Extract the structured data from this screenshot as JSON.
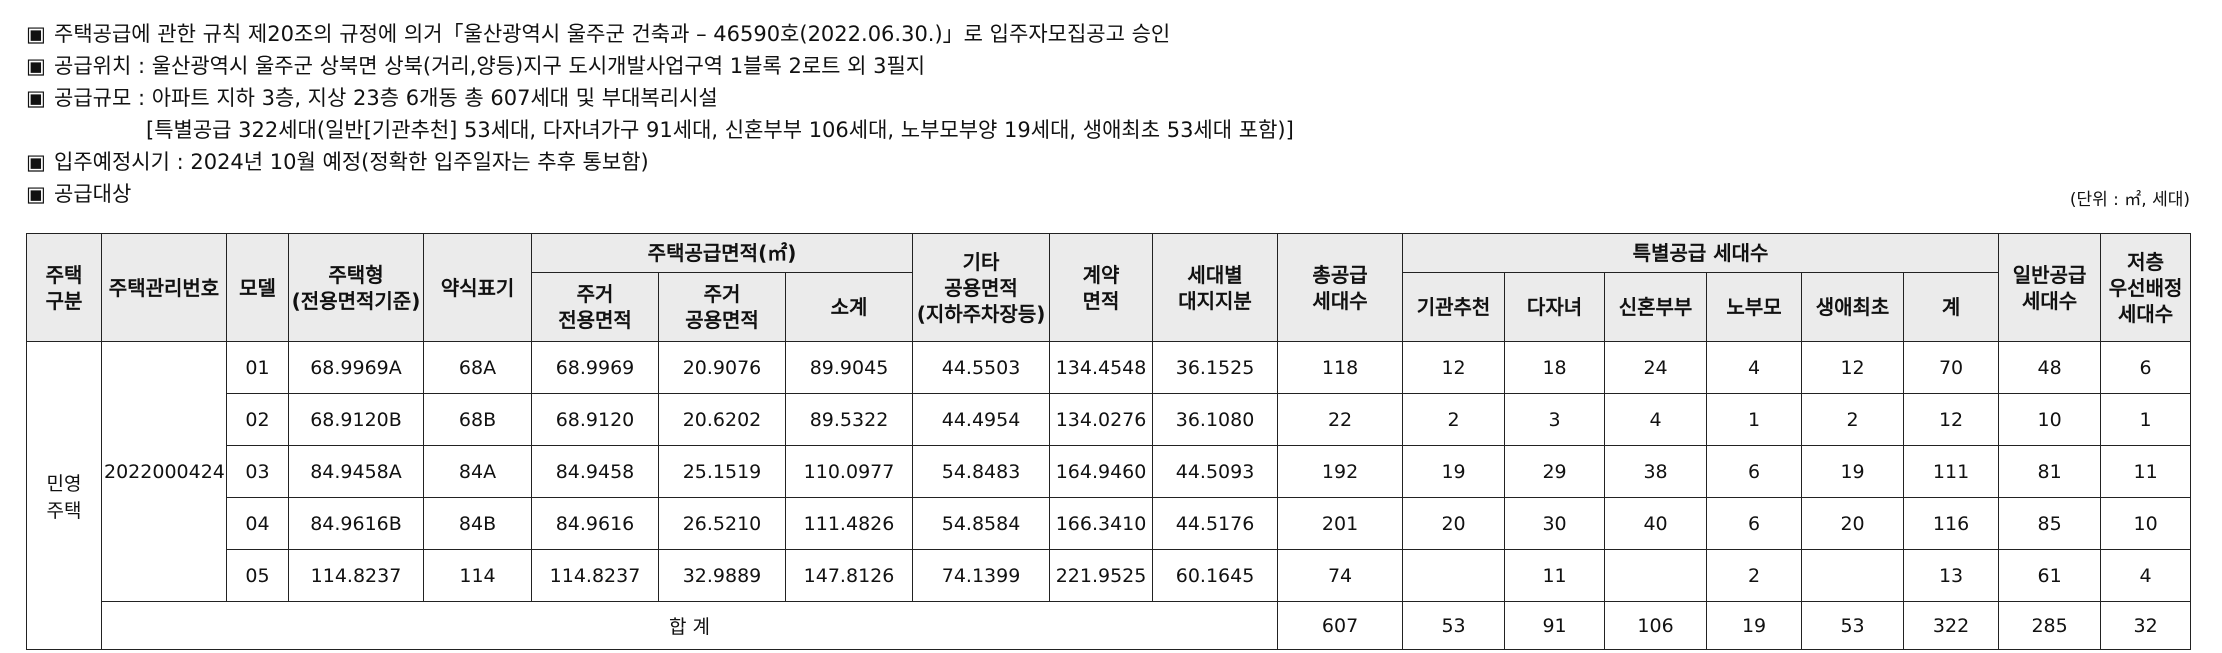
{
  "notes": {
    "bullet": "▣",
    "approval": "주택공급에 관한 규칙 제20조의 규정에 의거「울산광역시 울주군 건축과 – 46590호(2022.06.30.)」로 입주자모집공고 승인",
    "location": "공급위치 : 울산광역시 울주군 상북면 상북(거리,양등)지구 도시개발사업구역 1블록 2로트 외 3필지",
    "scale": "공급규모 : 아파트 지하 3층, 지상 23층 6개동 총 607세대 및 부대복리시설",
    "scale_detail": "[특별공급 322세대(일반[기관추천] 53세대, 다자녀가구 91세대, 신혼부부 106세대, 노부모부양 19세대, 생애최초 53세대 포함)]",
    "move_in": "입주예정시기 : 2024년 10월 예정(정확한 입주일자는 추후 통보함)",
    "target": "공급대상",
    "unit": "(단위 : ㎡, 세대)"
  },
  "table": {
    "headers": {
      "housing_type": [
        "주택",
        "구분"
      ],
      "mgmt_no": "주택관리번호",
      "model": "모델",
      "house_type": [
        "주택형",
        "(전용면적기준)"
      ],
      "abbr": "약식표기",
      "supply_area": "주택공급면적(㎡)",
      "residential_exclusive": [
        "주거",
        "전용면적"
      ],
      "residential_common": [
        "주거",
        "공용면적"
      ],
      "subtotal": "소계",
      "other_common": [
        "기타",
        "공용면적",
        "(지하주차장등)"
      ],
      "contract_area": [
        "계약",
        "면적"
      ],
      "land_share": [
        "세대별",
        "대지지분"
      ],
      "total_supply": [
        "총공급",
        "세대수"
      ],
      "special_supply": "특별공급 세대수",
      "institution": "기관추천",
      "multi_child": "다자녀",
      "newlywed": "신혼부부",
      "elderly": "노부모",
      "first_time": "생애최초",
      "special_total": "계",
      "general_supply": [
        "일반공급",
        "세대수"
      ],
      "low_floor": [
        "저층",
        "우선배정",
        "세대수"
      ]
    },
    "group_label": [
      "민영",
      "주택"
    ],
    "mgmt_no_value": "2022000424",
    "rows": [
      {
        "model": "01",
        "type": "68.9969A",
        "abbr": "68A",
        "excl": "68.9969",
        "comm": "20.9076",
        "sub": "89.9045",
        "other": "44.5503",
        "contract": "134.4548",
        "land": "36.1525",
        "total": "118",
        "inst": "12",
        "multi": "18",
        "newly": "24",
        "elder": "4",
        "first": "12",
        "spec": "70",
        "gen": "48",
        "low": "6"
      },
      {
        "model": "02",
        "type": "68.9120B",
        "abbr": "68B",
        "excl": "68.9120",
        "comm": "20.6202",
        "sub": "89.5322",
        "other": "44.4954",
        "contract": "134.0276",
        "land": "36.1080",
        "total": "22",
        "inst": "2",
        "multi": "3",
        "newly": "4",
        "elder": "1",
        "first": "2",
        "spec": "12",
        "gen": "10",
        "low": "1"
      },
      {
        "model": "03",
        "type": "84.9458A",
        "abbr": "84A",
        "excl": "84.9458",
        "comm": "25.1519",
        "sub": "110.0977",
        "other": "54.8483",
        "contract": "164.9460",
        "land": "44.5093",
        "total": "192",
        "inst": "19",
        "multi": "29",
        "newly": "38",
        "elder": "6",
        "first": "19",
        "spec": "111",
        "gen": "81",
        "low": "11"
      },
      {
        "model": "04",
        "type": "84.9616B",
        "abbr": "84B",
        "excl": "84.9616",
        "comm": "26.5210",
        "sub": "111.4826",
        "other": "54.8584",
        "contract": "166.3410",
        "land": "44.5176",
        "total": "201",
        "inst": "20",
        "multi": "30",
        "newly": "40",
        "elder": "6",
        "first": "20",
        "spec": "116",
        "gen": "85",
        "low": "10"
      },
      {
        "model": "05",
        "type": "114.8237",
        "abbr": "114",
        "excl": "114.8237",
        "comm": "32.9889",
        "sub": "147.8126",
        "other": "74.1399",
        "contract": "221.9525",
        "land": "60.1645",
        "total": "74",
        "inst": "",
        "multi": "11",
        "newly": "",
        "elder": "2",
        "first": "",
        "spec": "13",
        "gen": "61",
        "low": "4"
      }
    ],
    "totals": {
      "label": "합 계",
      "total": "607",
      "inst": "53",
      "multi": "91",
      "newly": "106",
      "elder": "19",
      "first": "53",
      "spec": "322",
      "gen": "285",
      "low": "32"
    }
  }
}
